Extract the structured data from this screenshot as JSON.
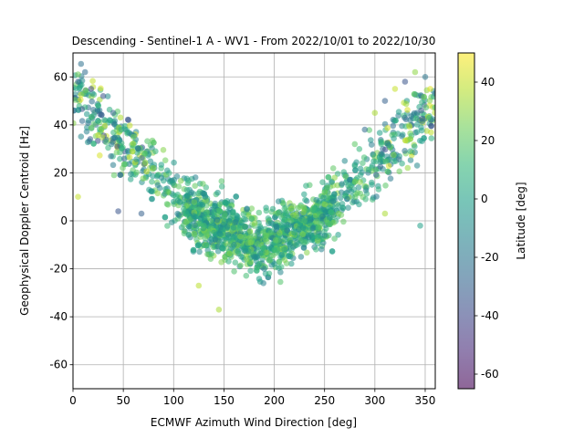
{
  "chart_data": {
    "type": "scatter",
    "title": "Descending - Sentinel-1 A - WV1 - From 2022/10/01 to 2022/10/30",
    "xlabel": "ECMWF Azimuth Wind Direction [deg]",
    "ylabel": "Geophysical Doppler Centroid [Hz]",
    "xlim": [
      0,
      360
    ],
    "ylim": [
      -70,
      70
    ],
    "xticks": [
      0,
      50,
      100,
      150,
      200,
      250,
      300,
      350
    ],
    "yticks": [
      -60,
      -40,
      -20,
      0,
      20,
      40,
      60
    ],
    "grid": true,
    "marker_alpha": 0.55,
    "colorbar": {
      "label": "Latitude [deg]",
      "colormap": "viridis",
      "range": [
        -65,
        50
      ],
      "ticks": [
        -60,
        -40,
        -20,
        0,
        20,
        40
      ],
      "stops": [
        "#440154",
        "#482878",
        "#3e4989",
        "#31688e",
        "#26828e",
        "#1f9e89",
        "#35b779",
        "#6ece58",
        "#b5de2b",
        "#fde725"
      ]
    },
    "point_count": 1800,
    "series": [
      {
        "values": [
          [
            5,
            58,
            -30
          ],
          [
            12,
            62,
            -25
          ],
          [
            18,
            55,
            -40
          ],
          [
            25,
            48,
            10
          ],
          [
            30,
            52,
            -35
          ],
          [
            40,
            45,
            -28
          ],
          [
            48,
            38,
            5
          ],
          [
            55,
            42,
            -32
          ],
          [
            60,
            35,
            25
          ],
          [
            65,
            30,
            -20
          ],
          [
            72,
            28,
            15
          ],
          [
            80,
            22,
            30
          ],
          [
            88,
            18,
            -10
          ],
          [
            95,
            12,
            20
          ],
          [
            100,
            8,
            0
          ],
          [
            110,
            5,
            10
          ],
          [
            120,
            2,
            -5
          ],
          [
            130,
            -2,
            15
          ],
          [
            140,
            -5,
            5
          ],
          [
            150,
            -8,
            0
          ],
          [
            160,
            -10,
            -8
          ],
          [
            170,
            -12,
            2
          ],
          [
            180,
            -15,
            -12
          ],
          [
            185,
            -18,
            8
          ],
          [
            190,
            -20,
            -15
          ],
          [
            195,
            -22,
            10
          ],
          [
            200,
            -18,
            -5
          ],
          [
            210,
            -12,
            5
          ],
          [
            220,
            -5,
            0
          ],
          [
            230,
            0,
            15
          ],
          [
            240,
            5,
            10
          ],
          [
            250,
            12,
            25
          ],
          [
            260,
            18,
            30
          ],
          [
            270,
            25,
            -10
          ],
          [
            280,
            32,
            20
          ],
          [
            290,
            38,
            -25
          ],
          [
            300,
            45,
            35
          ],
          [
            310,
            50,
            -30
          ],
          [
            320,
            55,
            40
          ],
          [
            330,
            58,
            -35
          ],
          [
            340,
            62,
            30
          ],
          [
            350,
            60,
            -20
          ],
          [
            355,
            55,
            45
          ],
          [
            145,
            -37,
            35
          ],
          [
            345,
            -2,
            0
          ],
          [
            5,
            10,
            40
          ],
          [
            45,
            4,
            -35
          ],
          [
            68,
            3,
            -30
          ],
          [
            125,
            -27,
            38
          ],
          [
            310,
            3,
            35
          ]
        ],
        "value_fields": [
          "x",
          "y",
          "latitude"
        ]
      }
    ]
  }
}
